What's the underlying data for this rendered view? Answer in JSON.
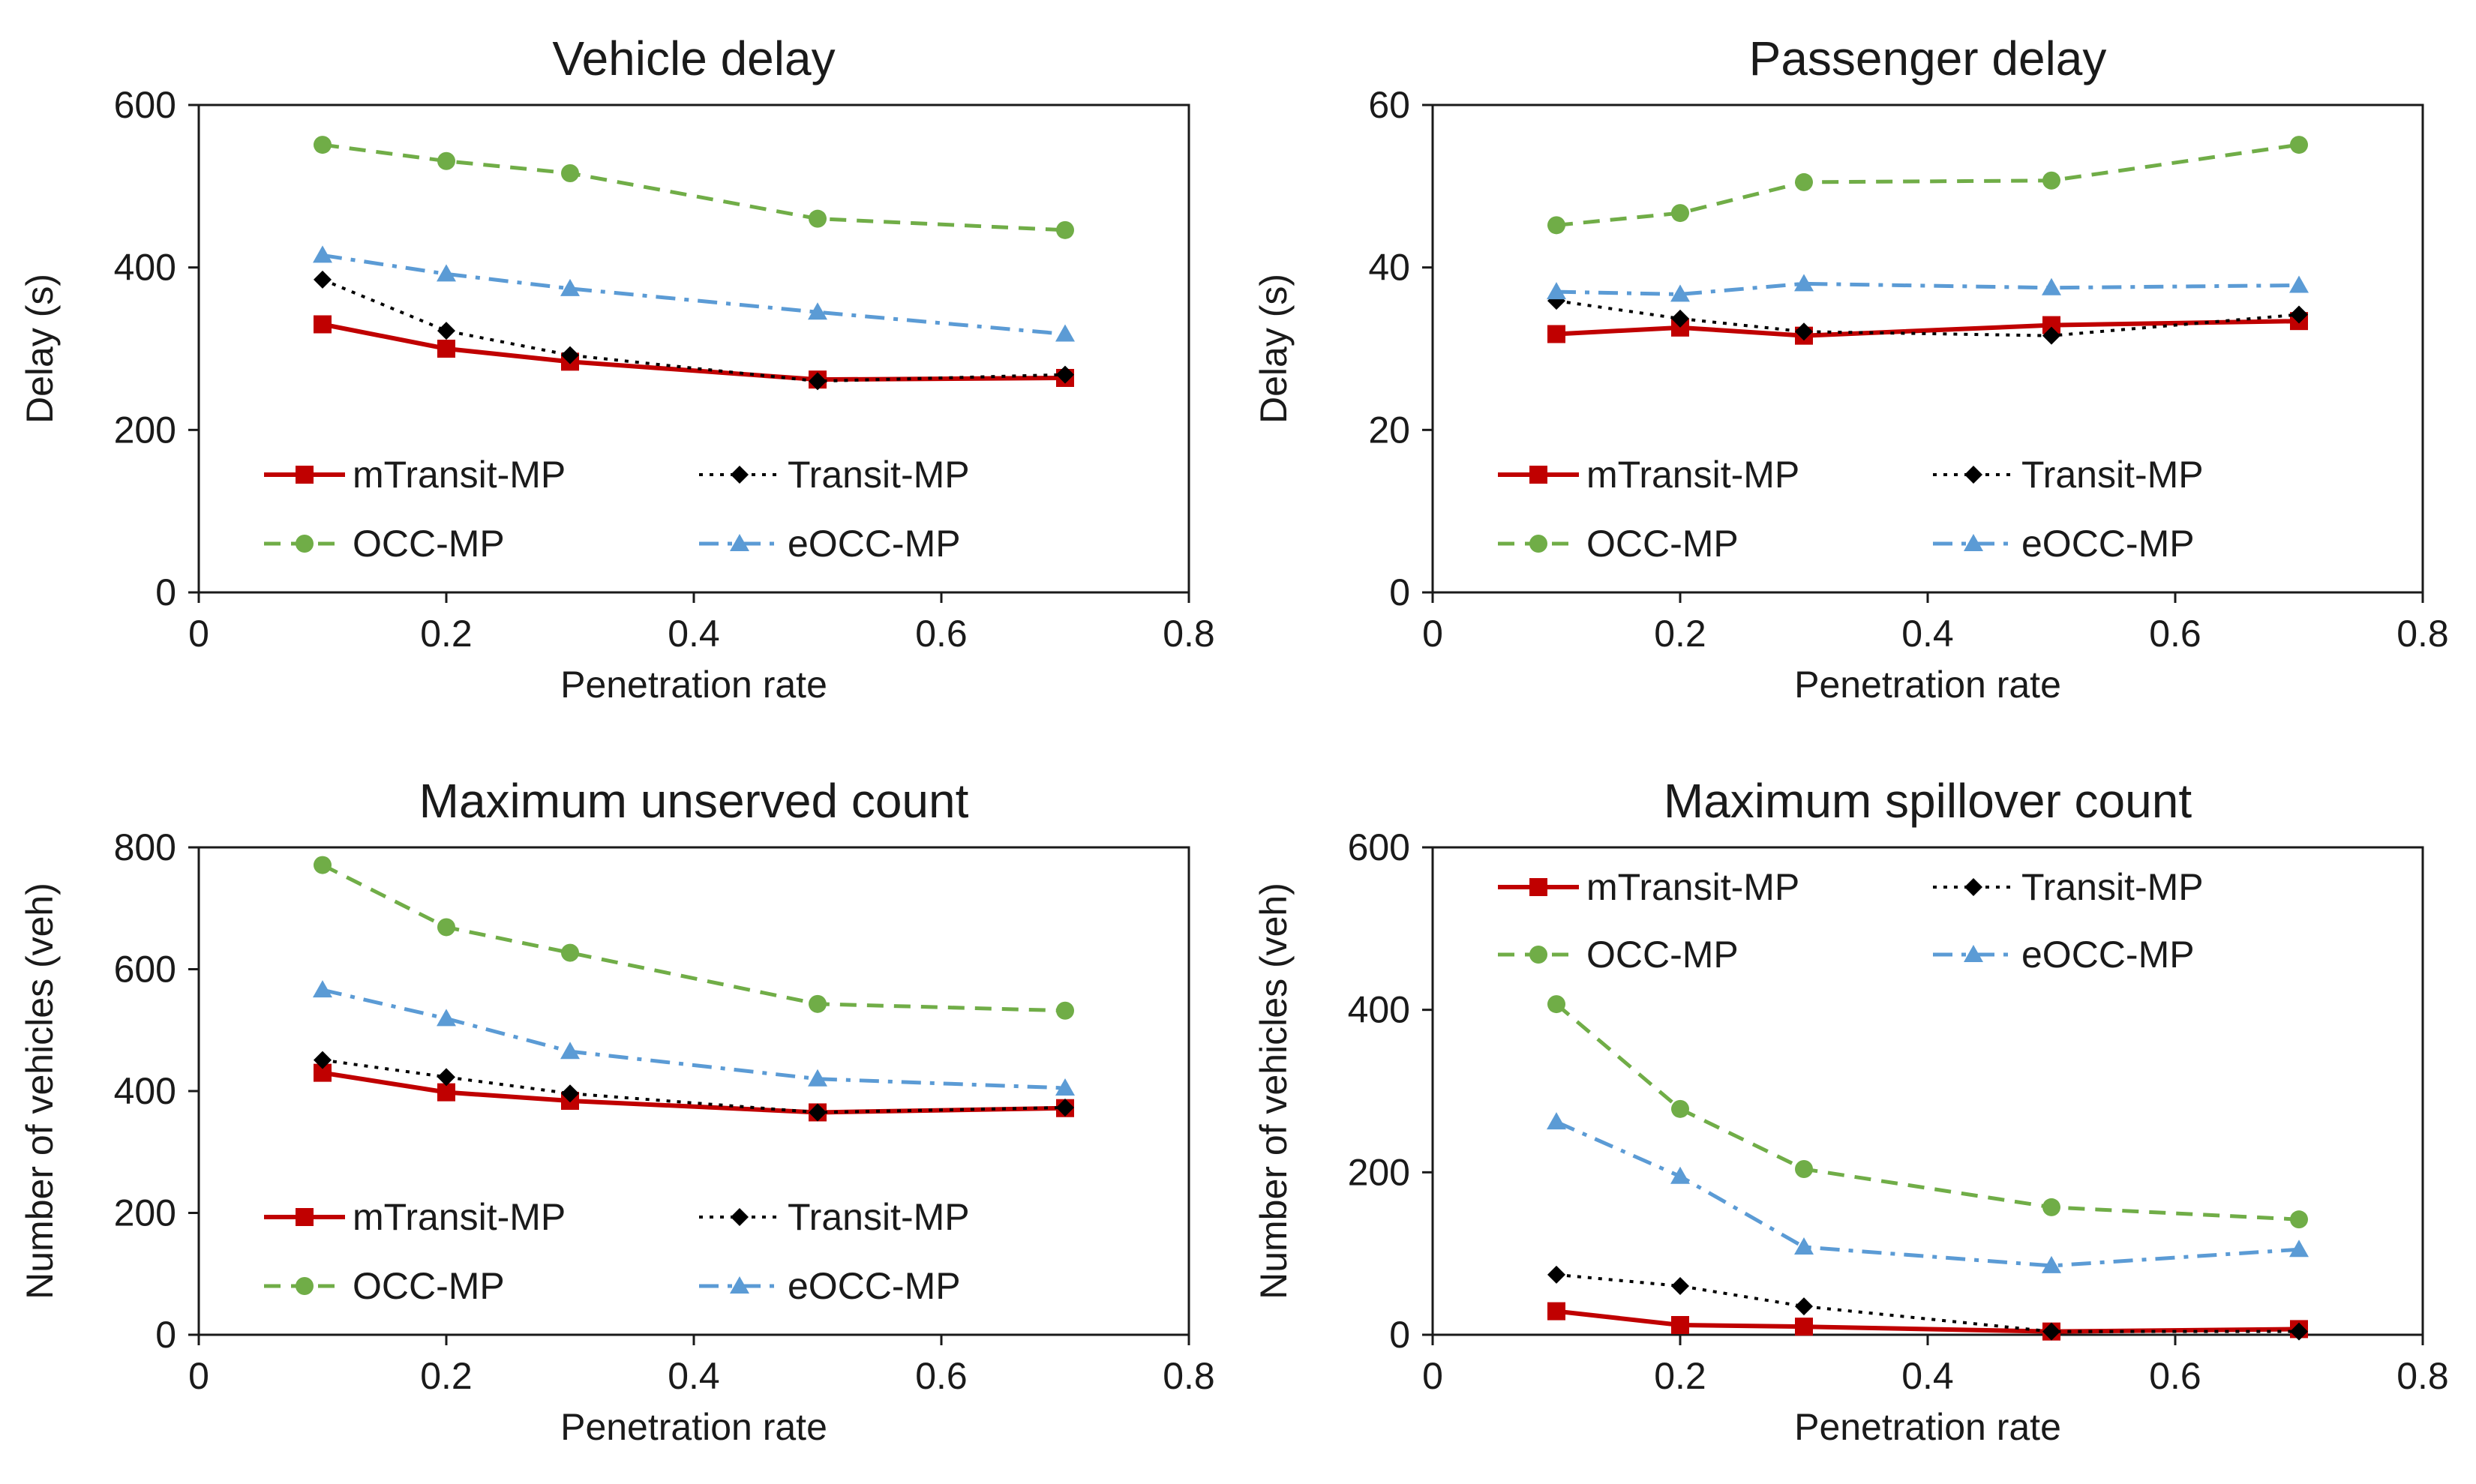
{
  "series_styles": {
    "mTransit-MP": {
      "color": "#c00000",
      "dash": "none",
      "marker": "square"
    },
    "Transit-MP": {
      "color": "#000000",
      "dash": "dot",
      "marker": "diamond"
    },
    "OCC-MP": {
      "color": "#70ad47",
      "dash": "dash",
      "marker": "circle"
    },
    "eOCC-MP": {
      "color": "#5b9bd5",
      "dash": "dashdot",
      "marker": "triangle"
    }
  },
  "chart_data": [
    {
      "type": "line",
      "title": "Vehicle delay",
      "xlabel": "Penetration rate",
      "ylabel": "Delay (s)",
      "xlim": [
        0,
        0.8
      ],
      "ylim": [
        0,
        600
      ],
      "xticks": [
        "0",
        "0.2",
        "0.4",
        "0.6",
        "0.8"
      ],
      "yticks": [
        "0",
        "200",
        "400",
        "600"
      ],
      "grid": false,
      "legend_position": "bottom-inside",
      "x": [
        0.1,
        0.2,
        0.3,
        0.5,
        0.7
      ],
      "series": [
        {
          "name": "mTransit-MP",
          "values": [
            330,
            300,
            284,
            262,
            264
          ]
        },
        {
          "name": "Transit-MP",
          "values": [
            385,
            322,
            292,
            260,
            268
          ]
        },
        {
          "name": "OCC-MP",
          "values": [
            551,
            531,
            516,
            460,
            446
          ]
        },
        {
          "name": "eOCC-MP",
          "values": [
            415,
            392,
            374,
            345,
            318
          ]
        }
      ]
    },
    {
      "type": "line",
      "title": "Passenger delay",
      "xlabel": "Penetration rate",
      "ylabel": "Delay (s)",
      "xlim": [
        0,
        0.8
      ],
      "ylim": [
        0,
        60
      ],
      "xticks": [
        "0",
        "0.2",
        "0.4",
        "0.6",
        "0.8"
      ],
      "yticks": [
        "0",
        "20",
        "40",
        "60"
      ],
      "grid": false,
      "legend_position": "bottom-inside",
      "x": [
        0.1,
        0.2,
        0.3,
        0.5,
        0.7
      ],
      "series": [
        {
          "name": "mTransit-MP",
          "values": [
            31.8,
            32.6,
            31.6,
            32.9,
            33.4
          ]
        },
        {
          "name": "Transit-MP",
          "values": [
            35.9,
            33.7,
            32.1,
            31.6,
            34.2
          ]
        },
        {
          "name": "OCC-MP",
          "values": [
            45.2,
            46.7,
            50.5,
            50.7,
            55.1
          ]
        },
        {
          "name": "eOCC-MP",
          "values": [
            37.0,
            36.7,
            38.0,
            37.5,
            37.8
          ]
        }
      ]
    },
    {
      "type": "line",
      "title": "Maximum unserved count",
      "xlabel": "Penetration rate",
      "ylabel": "Number of vehicles (veh)",
      "xlim": [
        0,
        0.8
      ],
      "ylim": [
        0,
        800
      ],
      "xticks": [
        "0",
        "0.2",
        "0.4",
        "0.6",
        "0.8"
      ],
      "yticks": [
        "0",
        "200",
        "400",
        "600",
        "800"
      ],
      "grid": false,
      "legend_position": "bottom-inside",
      "x": [
        0.1,
        0.2,
        0.3,
        0.5,
        0.7
      ],
      "series": [
        {
          "name": "mTransit-MP",
          "values": [
            430,
            398,
            384,
            365,
            372
          ]
        },
        {
          "name": "Transit-MP",
          "values": [
            451,
            423,
            396,
            365,
            373
          ]
        },
        {
          "name": "OCC-MP",
          "values": [
            771,
            669,
            627,
            543,
            532
          ]
        },
        {
          "name": "eOCC-MP",
          "values": [
            566,
            519,
            465,
            420,
            405
          ]
        }
      ]
    },
    {
      "type": "line",
      "title": "Maximum spillover count",
      "xlabel": "Penetration rate",
      "ylabel": "Number of vehicles (veh)",
      "xlim": [
        0,
        0.8
      ],
      "ylim": [
        0,
        600
      ],
      "xticks": [
        "0",
        "0.2",
        "0.4",
        "0.6",
        "0.8"
      ],
      "yticks": [
        "0",
        "200",
        "400",
        "600"
      ],
      "grid": false,
      "legend_position": "top-inside",
      "x": [
        0.1,
        0.2,
        0.3,
        0.5,
        0.7
      ],
      "series": [
        {
          "name": "mTransit-MP",
          "values": [
            29,
            12,
            10,
            4,
            7
          ]
        },
        {
          "name": "Transit-MP",
          "values": [
            74,
            60,
            35,
            4,
            4
          ]
        },
        {
          "name": "OCC-MP",
          "values": [
            407,
            278,
            204,
            157,
            142
          ]
        },
        {
          "name": "eOCC-MP",
          "values": [
            262,
            195,
            108,
            85,
            105
          ]
        }
      ]
    }
  ]
}
